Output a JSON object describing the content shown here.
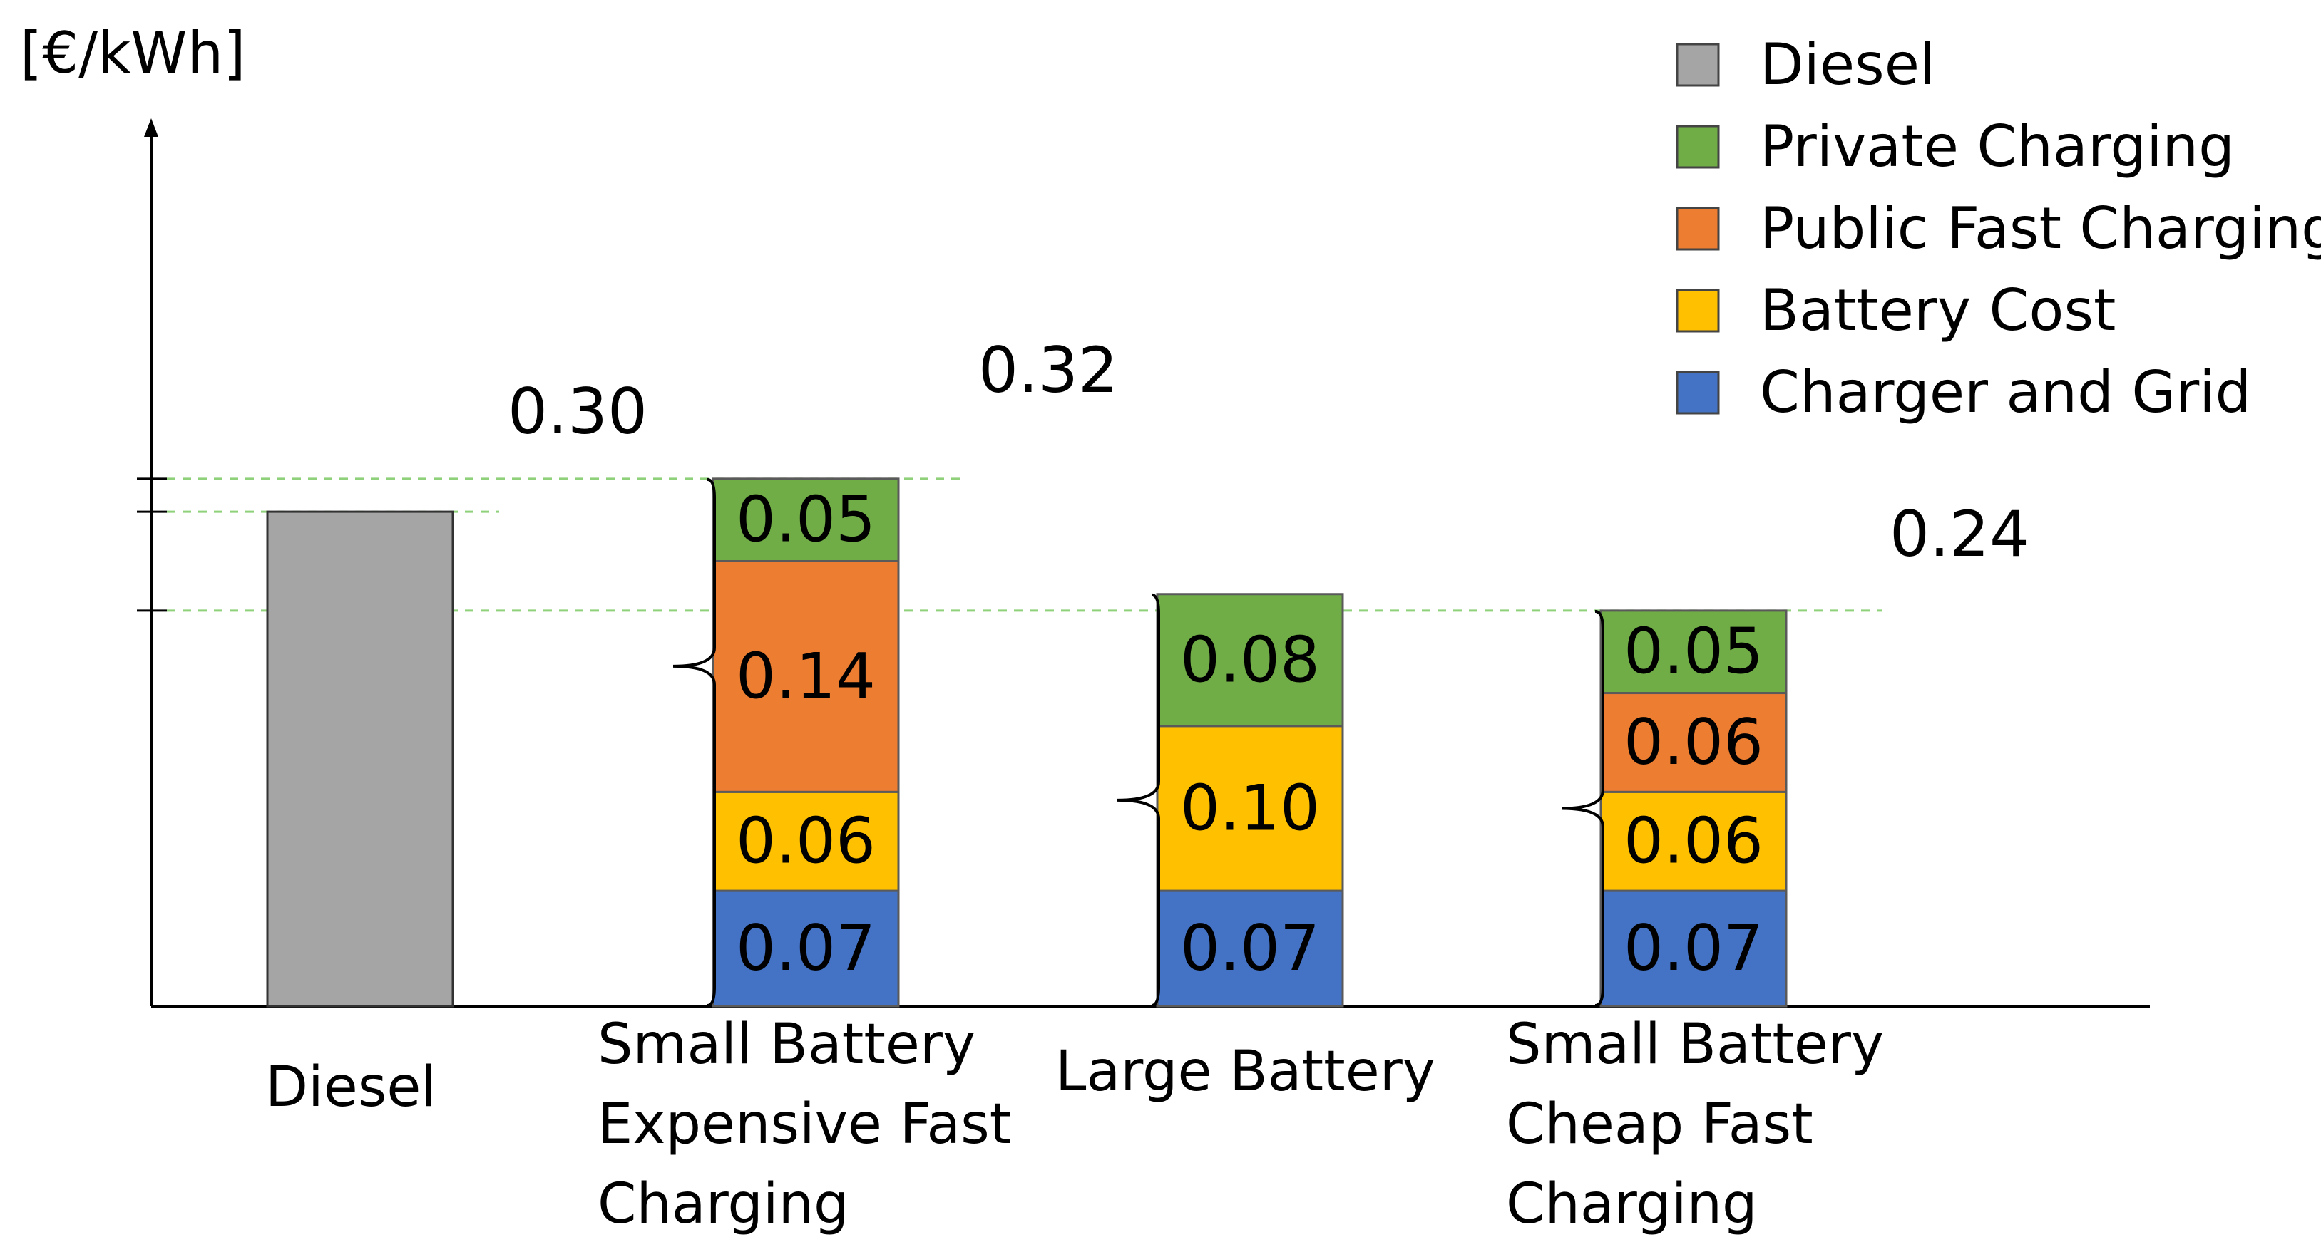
{
  "chart_data": {
    "type": "stacked-bar",
    "ylabel": "[€/kWh]",
    "ylim": [
      0,
      0.4
    ],
    "categories": [
      "Diesel",
      "Small Battery Expensive Fast Charging",
      "Large Battery",
      "Small Battery Cheap Fast Charging"
    ],
    "category_lines": [
      [
        "Diesel"
      ],
      [
        "Small Battery",
        "Expensive Fast",
        "Charging"
      ],
      [
        "Large Battery"
      ],
      [
        "Small Battery",
        "Cheap Fast",
        "Charging"
      ]
    ],
    "series": [
      {
        "key": "charger",
        "name": "Charger and Grid",
        "color": "#4472C4",
        "values": [
          null,
          0.07,
          0.07,
          0.07
        ],
        "labels": [
          null,
          "0.07",
          "0.07",
          "0.07"
        ]
      },
      {
        "key": "battery",
        "name": "Battery Cost",
        "color": "#FFC000",
        "values": [
          null,
          0.06,
          0.1,
          0.06
        ],
        "labels": [
          null,
          "0.06",
          "0.10",
          "0.06"
        ]
      },
      {
        "key": "public",
        "name": "Public Fast Charging",
        "color": "#ED7D31",
        "values": [
          null,
          0.14,
          null,
          0.06
        ],
        "labels": [
          null,
          "0.14",
          null,
          "0.06"
        ]
      },
      {
        "key": "private",
        "name": "Private Charging",
        "color": "#70AD47",
        "values": [
          null,
          0.05,
          0.08,
          0.05
        ],
        "labels": [
          null,
          "0.05",
          "0.08",
          "0.05"
        ]
      },
      {
        "key": "diesel",
        "name": "Diesel",
        "color": "#A5A5A5",
        "values": [
          0.3,
          null,
          null,
          null
        ],
        "labels": [
          null,
          null,
          null,
          null
        ]
      }
    ],
    "legend_order": [
      "diesel",
      "private",
      "public",
      "battery",
      "charger"
    ],
    "legend_position": "top-right",
    "annotations": [
      {
        "text": "0.32",
        "value": 0.32
      },
      {
        "text": "0.30",
        "value": 0.3
      },
      {
        "text": "0.24",
        "value": 0.24
      }
    ]
  }
}
